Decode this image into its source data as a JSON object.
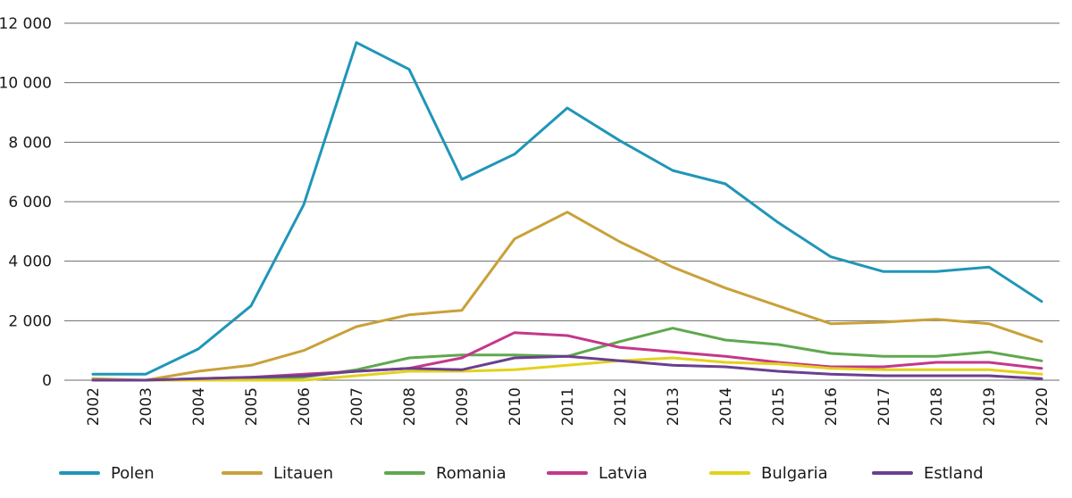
{
  "chart_data": {
    "type": "line",
    "title": "",
    "xlabel": "",
    "ylabel": "",
    "ylim": [
      0,
      12000
    ],
    "yticks": [
      0,
      2000,
      4000,
      6000,
      8000,
      10000,
      12000
    ],
    "ytick_labels": [
      "0",
      "2 000",
      "4 000",
      "6 000",
      "8 000",
      "10 000",
      "12 000"
    ],
    "grid": true,
    "legend_position": "bottom",
    "categories": [
      "2002",
      "2003",
      "2004",
      "2005",
      "2006",
      "2007",
      "2008",
      "2009",
      "2010",
      "2011",
      "2012",
      "2013",
      "2014",
      "2015",
      "2016",
      "2017",
      "2018",
      "2019",
      "2020"
    ],
    "series": [
      {
        "name": "Polen",
        "color": "#1f96b8",
        "values": [
          200,
          200,
          1050,
          2500,
          5900,
          11350,
          10450,
          6750,
          7600,
          9150,
          8050,
          7050,
          6600,
          5300,
          4150,
          3650,
          3650,
          3800,
          2650
        ]
      },
      {
        "name": "Litauen",
        "color": "#c9a13a",
        "values": [
          50,
          0,
          300,
          500,
          1000,
          1800,
          2200,
          2350,
          4750,
          5650,
          4650,
          3800,
          3100,
          2500,
          1900,
          1950,
          2050,
          1900,
          1300
        ]
      },
      {
        "name": "Romania",
        "color": "#5fa84e",
        "values": [
          0,
          0,
          0,
          50,
          100,
          350,
          750,
          850,
          850,
          800,
          1300,
          1750,
          1350,
          1200,
          900,
          800,
          800,
          950,
          650
        ]
      },
      {
        "name": "Latvia",
        "color": "#c4388a",
        "values": [
          0,
          0,
          50,
          100,
          200,
          300,
          400,
          750,
          1600,
          1500,
          1100,
          950,
          800,
          600,
          450,
          450,
          600,
          600,
          400
        ]
      },
      {
        "name": "Bulgaria",
        "color": "#e3d21b",
        "values": [
          0,
          0,
          0,
          0,
          0,
          150,
          300,
          300,
          350,
          500,
          650,
          750,
          600,
          550,
          400,
          350,
          350,
          350,
          200
        ]
      },
      {
        "name": "Estland",
        "color": "#6b3f8f",
        "values": [
          0,
          0,
          50,
          100,
          150,
          300,
          400,
          350,
          750,
          800,
          650,
          500,
          450,
          300,
          200,
          150,
          150,
          150,
          50
        ]
      }
    ]
  }
}
